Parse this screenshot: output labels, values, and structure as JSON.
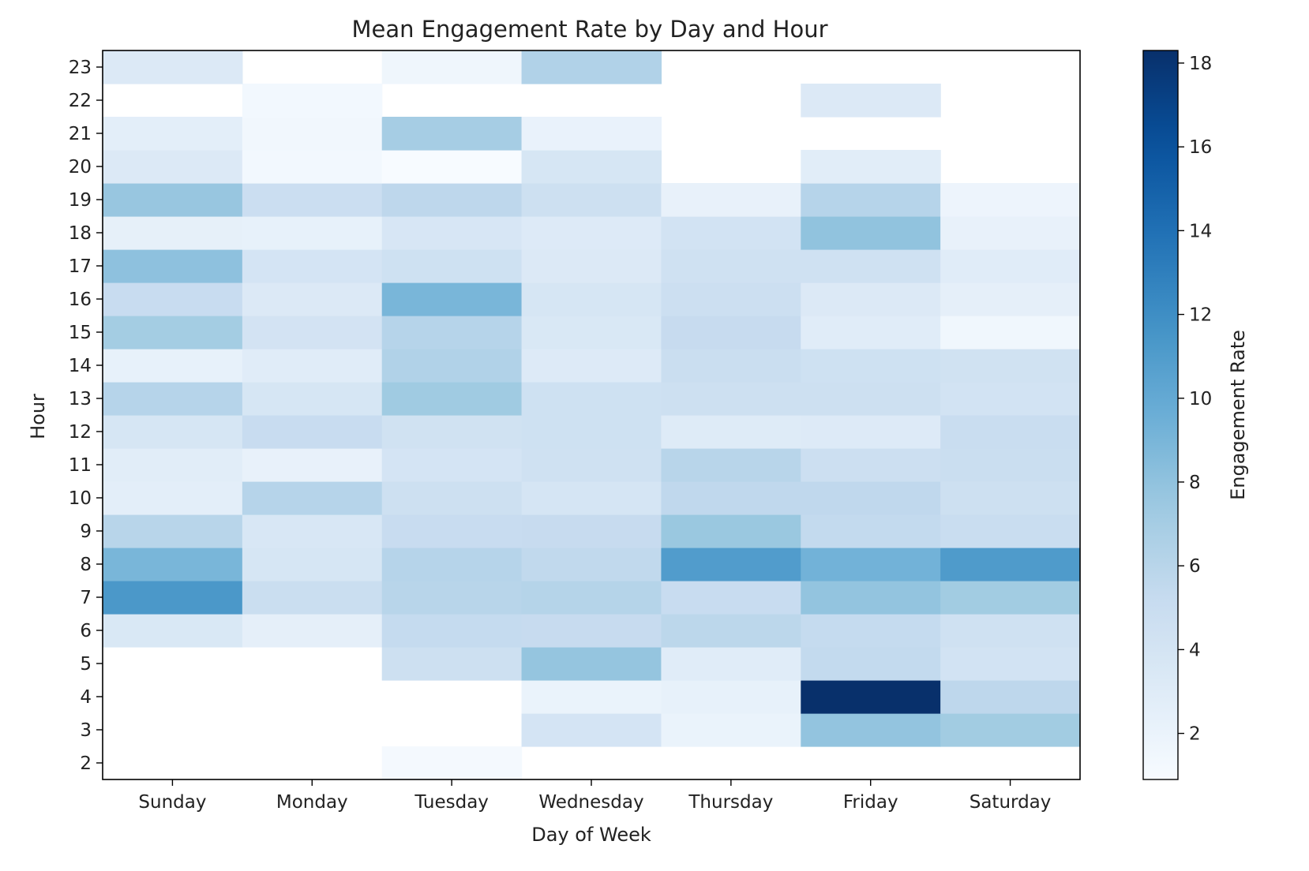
{
  "chart_data": {
    "type": "heatmap",
    "title": "Mean Engagement Rate by Day and Hour",
    "xlabel": "Day of Week",
    "ylabel": "Hour",
    "colorbar_label": "Engagement Rate",
    "colormap": "Blues",
    "color_range": [
      0.9,
      18.3
    ],
    "colorbar_ticks": [
      2,
      4,
      6,
      8,
      10,
      12,
      14,
      16,
      18
    ],
    "grid": false,
    "x_categories": [
      "Sunday",
      "Monday",
      "Tuesday",
      "Wednesday",
      "Thursday",
      "Friday",
      "Saturday"
    ],
    "y_categories": [
      2,
      3,
      4,
      5,
      6,
      7,
      8,
      9,
      10,
      11,
      12,
      13,
      14,
      15,
      16,
      17,
      18,
      19,
      20,
      21,
      22,
      23
    ],
    "values_by_hour": {
      "2": [
        null,
        null,
        1.2,
        null,
        null,
        null,
        null
      ],
      "3": [
        null,
        null,
        null,
        4.0,
        2.0,
        7.9,
        7.2
      ],
      "4": [
        null,
        null,
        null,
        2.0,
        2.3,
        18.3,
        5.7
      ],
      "5": [
        null,
        null,
        4.6,
        7.8,
        2.9,
        5.4,
        4.2
      ],
      "6": [
        3.5,
        2.5,
        5.3,
        5.2,
        5.8,
        5.3,
        4.4
      ],
      "7": [
        11.3,
        4.9,
        6.0,
        6.2,
        5.1,
        7.9,
        7.2
      ],
      "8": [
        9.0,
        3.8,
        6.1,
        5.5,
        11.0,
        9.3,
        11.1
      ],
      "9": [
        6.0,
        3.6,
        5.1,
        5.2,
        7.6,
        5.4,
        5.0
      ],
      "10": [
        2.6,
        6.1,
        4.6,
        3.9,
        5.6,
        5.6,
        4.6
      ],
      "11": [
        2.8,
        2.2,
        4.0,
        4.4,
        6.0,
        4.7,
        4.9
      ],
      "12": [
        3.8,
        5.1,
        4.3,
        4.5,
        3.1,
        3.2,
        5.0
      ],
      "13": [
        6.1,
        3.8,
        7.3,
        4.5,
        4.6,
        4.6,
        4.2
      ],
      "14": [
        2.3,
        2.9,
        6.4,
        3.2,
        4.9,
        4.5,
        4.3
      ],
      "15": [
        7.1,
        4.1,
        6.1,
        3.5,
        5.2,
        2.9,
        1.5
      ],
      "16": [
        5.1,
        3.3,
        9.0,
        3.8,
        4.7,
        3.3,
        2.5
      ],
      "17": [
        8.1,
        4.0,
        4.5,
        3.3,
        4.4,
        4.4,
        2.9
      ],
      "18": [
        2.4,
        2.3,
        3.7,
        3.2,
        4.2,
        8.0,
        2.2
      ],
      "19": [
        7.7,
        4.8,
        5.7,
        4.6,
        2.2,
        6.1,
        1.8
      ],
      "20": [
        3.3,
        1.3,
        0.9,
        3.8,
        null,
        2.8,
        null
      ],
      "21": [
        2.6,
        1.4,
        7.0,
        2.1,
        null,
        null,
        null
      ],
      "22": [
        null,
        1.3,
        null,
        null,
        null,
        3.3,
        null
      ],
      "23": [
        3.3,
        null,
        1.6,
        6.4,
        null,
        null,
        null
      ]
    }
  }
}
